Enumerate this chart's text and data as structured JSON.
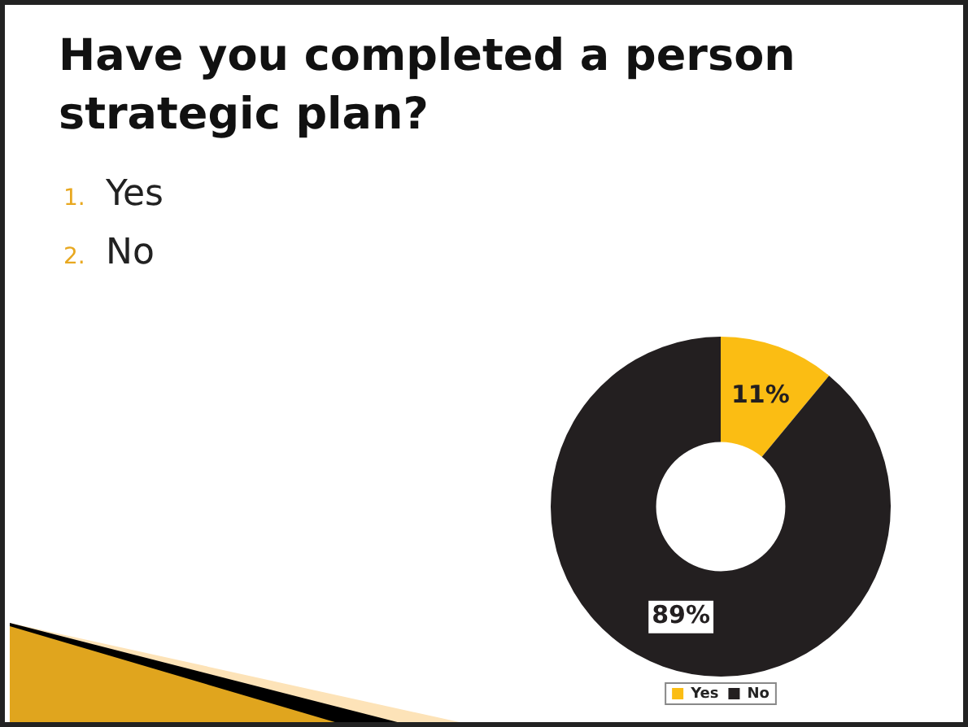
{
  "chart_data": {
    "type": "donut",
    "title": "Have you completed a person strategic plan?",
    "annotations": [
      "1.",
      "Yes",
      "2.",
      "No"
    ],
    "categories": [
      "Yes",
      "No"
    ],
    "values": [
      11,
      89
    ],
    "colors": [
      "#fbbd13",
      "#231f20"
    ],
    "value_labels": [
      "11%",
      "89%"
    ],
    "legend": "bottom"
  }
}
